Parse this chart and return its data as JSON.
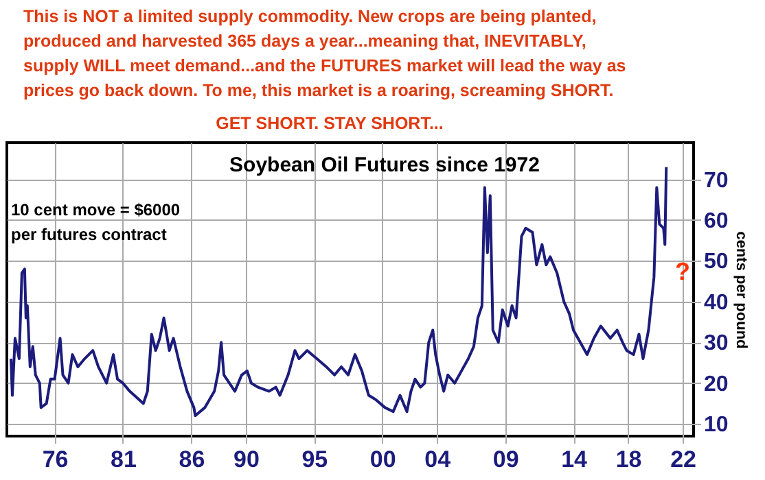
{
  "chart_data": {
    "type": "line",
    "title": "Soybean Oil Futures since 1972",
    "y2label": "cents per pound",
    "annotations": [
      "This is NOT a limited supply commodity. New crops are being planted,\nproduced and harvested 365 days a year...meaning that, INEVITABLY,\nsupply WILL meet demand...and the FUTURES market will lead the way as\nprices go back down. To me, this market is a roaring, screaming SHORT.",
      "GET SHORT. STAY SHORT...",
      "10 cent move = $6000\nper futures contract",
      "?"
    ],
    "xlim": [
      1972.5,
      2022.8
    ],
    "ylim": [
      7,
      79
    ],
    "xticks": [
      {
        "value": 1976,
        "label": "76"
      },
      {
        "value": 1981,
        "label": "81"
      },
      {
        "value": 1986,
        "label": "86"
      },
      {
        "value": 1990,
        "label": "90"
      },
      {
        "value": 1995,
        "label": "95"
      },
      {
        "value": 2000,
        "label": "00"
      },
      {
        "value": 2004,
        "label": "04"
      },
      {
        "value": 2009,
        "label": "09"
      },
      {
        "value": 2014,
        "label": "14"
      },
      {
        "value": 2018,
        "label": "18"
      },
      {
        "value": 2022,
        "label": "22"
      }
    ],
    "yticks": [
      10,
      20,
      30,
      40,
      50,
      60,
      70
    ],
    "grid": true,
    "line_style": "solid",
    "series": [
      {
        "color": "#1c1c7c",
        "x": [
          1972.8,
          1972.9,
          1973.1,
          1973.4,
          1973.6,
          1973.8,
          1973.9,
          1974.0,
          1974.2,
          1974.4,
          1974.6,
          1974.9,
          1975.0,
          1975.4,
          1975.7,
          1976.0,
          1976.4,
          1976.6,
          1977.0,
          1977.3,
          1977.7,
          1978.2,
          1978.8,
          1979.2,
          1979.8,
          1980.3,
          1980.6,
          1981.0,
          1981.5,
          1982.5,
          1982.8,
          1983.1,
          1983.4,
          1983.7,
          1984.0,
          1984.4,
          1984.7,
          1985.2,
          1985.7,
          1986.2,
          1986.3,
          1987.0,
          1987.7,
          1988.0,
          1988.2,
          1988.4,
          1989.0,
          1989.2,
          1989.7,
          1990.1,
          1990.4,
          1990.9,
          1991.7,
          1992.2,
          1992.5,
          1993.1,
          1993.6,
          1993.9,
          1994.5,
          1995.2,
          1995.9,
          1996.5,
          1997.0,
          1997.5,
          1998.0,
          1998.5,
          1999.0,
          1999.5,
          2000.2,
          2000.8,
          2001.3,
          2001.8,
          2002.1,
          2002.4,
          2002.8,
          2003.1,
          2003.4,
          2003.7,
          2003.9,
          2004.2,
          2004.5,
          2004.8,
          2005.3,
          2005.8,
          2006.3,
          2006.7,
          2007.0,
          2007.3,
          2007.5,
          2007.7,
          2007.9,
          2008.1,
          2008.5,
          2008.8,
          2009.2,
          2009.5,
          2009.8,
          2010.2,
          2010.5,
          2011.0,
          2011.3,
          2011.7,
          2012.0,
          2012.3,
          2012.8,
          2013.3,
          2013.7,
          2014.0,
          2014.5,
          2015.0,
          2015.5,
          2016.0,
          2016.7,
          2017.2,
          2017.6,
          2017.9,
          2018.4,
          2018.8,
          2019.1,
          2019.5,
          2019.9,
          2020.1,
          2020.3,
          2020.6,
          2020.7,
          2020.8
        ],
        "values": [
          26,
          17,
          31,
          26,
          47,
          48,
          36,
          39,
          24,
          29,
          22,
          20,
          14,
          15,
          21,
          21,
          31,
          22,
          20,
          27,
          24,
          26,
          28,
          24,
          20,
          27,
          21,
          20,
          18,
          15,
          18,
          32,
          28,
          31,
          36,
          28,
          31,
          24,
          18,
          14,
          12,
          14,
          18,
          23,
          30,
          22,
          19,
          18,
          22,
          23,
          20,
          19,
          18,
          19,
          17,
          22,
          28,
          26,
          28,
          26,
          24,
          22,
          24,
          22,
          27,
          23,
          17,
          16,
          14,
          13,
          17,
          13,
          18,
          21,
          19,
          20,
          30,
          33,
          27,
          22,
          18,
          22,
          20,
          23,
          26,
          29,
          36,
          39,
          68,
          52,
          66,
          33,
          30,
          38,
          34,
          39,
          36,
          56,
          58,
          57,
          49,
          54,
          49,
          51,
          47,
          40,
          37,
          33,
          30,
          27,
          31,
          34,
          31,
          33,
          30,
          28,
          27,
          32,
          26,
          33,
          46,
          68,
          59,
          58,
          54,
          73
        ]
      }
    ]
  }
}
